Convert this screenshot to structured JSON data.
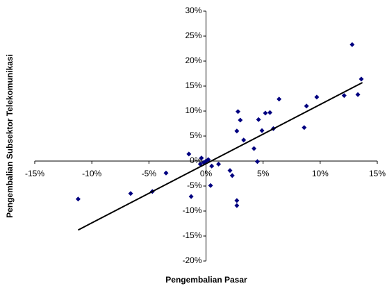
{
  "chart_data": {
    "type": "scatter",
    "x_label": "Pengembalian Pasar",
    "y_label": "Pengembalian Subsektor Telekomunikasi",
    "xlim": [
      -15,
      15
    ],
    "ylim": [
      -20,
      30
    ],
    "xticks": [
      {
        "value": -15,
        "label": "-15%"
      },
      {
        "value": -10,
        "label": "-10%"
      },
      {
        "value": -5,
        "label": "-5%"
      },
      {
        "value": 0,
        "label": "0%"
      },
      {
        "value": 5,
        "label": "5%"
      },
      {
        "value": 10,
        "label": "10%"
      },
      {
        "value": 15,
        "label": "15%"
      }
    ],
    "yticks": [
      {
        "value": -20,
        "label": "-20%"
      },
      {
        "value": -15,
        "label": "-15%"
      },
      {
        "value": -10,
        "label": "-10%"
      },
      {
        "value": -5,
        "label": "-5%"
      },
      {
        "value": 0,
        "label": "0%"
      },
      {
        "value": 5,
        "label": "5%"
      },
      {
        "value": 10,
        "label": "10%"
      },
      {
        "value": 15,
        "label": "15%"
      },
      {
        "value": 20,
        "label": "20%"
      },
      {
        "value": 25,
        "label": "25%"
      },
      {
        "value": 30,
        "label": "30%"
      }
    ],
    "color": "#000080",
    "x": [
      -11.2,
      -6.6,
      -4.7,
      -3.5,
      -1.5,
      -1.3,
      -0.4,
      -0.2,
      0,
      -0.5,
      0.2,
      0.4,
      0.5,
      1.1,
      2.1,
      2.3,
      2.7,
      2.7,
      2.7,
      2.8,
      3.0,
      3.3,
      4.2,
      4.5,
      4.6,
      4.9,
      5.2,
      5.6,
      5.9,
      6.4,
      8.6,
      8.8,
      9.7,
      12.1,
      12.8,
      13.3,
      13.6
    ],
    "y": [
      -7.6,
      -6.5,
      -6.1,
      -2.4,
      1.4,
      -7.1,
      0.6,
      -0.3,
      0,
      -0.6,
      0.3,
      -4.9,
      -1.0,
      -0.6,
      -1.9,
      -2.9,
      -7.9,
      -8.9,
      6.0,
      9.9,
      8.2,
      4.2,
      2.5,
      -0.1,
      8.3,
      6.1,
      9.6,
      9.7,
      6.5,
      12.4,
      6.7,
      11.0,
      12.8,
      13.1,
      23.3,
      13.3,
      16.4
    ],
    "trendline": {
      "x": [
        -11.2,
        13.7
      ],
      "y": [
        -13.8,
        15.7
      ],
      "color": "#000000"
    }
  }
}
